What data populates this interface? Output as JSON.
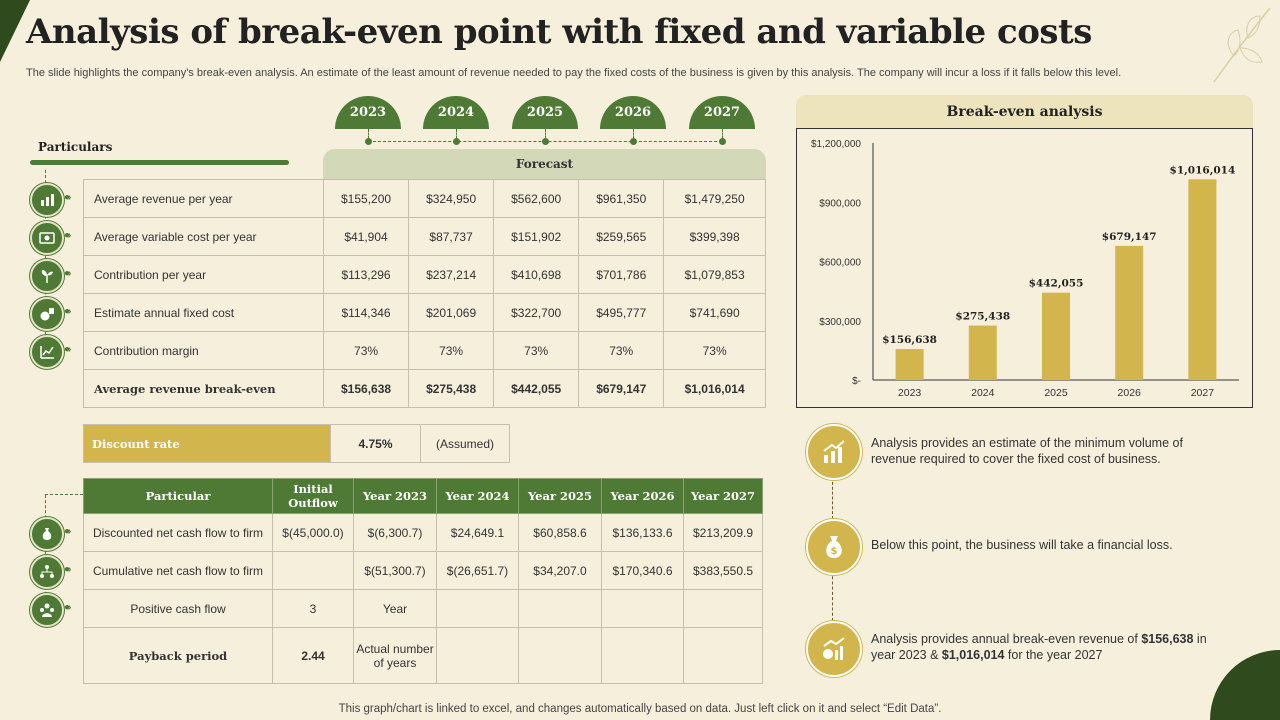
{
  "title": "Analysis of break-even point with fixed and variable costs",
  "subtitle": "The slide highlights the company's break-even analysis. An estimate of the least amount of revenue needed to pay the fixed costs of the business is given by this analysis. The company will incur a loss if it falls below this level.",
  "years": [
    "2023",
    "2024",
    "2025",
    "2026",
    "2027"
  ],
  "particulars_heading": "Particulars",
  "forecast_heading": "Forecast",
  "forecast_rows": [
    {
      "label": "Average revenue per year",
      "values": [
        "$155,200",
        "$324,950",
        "$562,600",
        "$961,350",
        "$1,479,250"
      ],
      "icon": "chart-icon"
    },
    {
      "label": "Average variable cost per year",
      "values": [
        "$41,904",
        "$87,737",
        "$151,902",
        "$259,565",
        "$399,398"
      ],
      "icon": "money-icon"
    },
    {
      "label": "Contribution per year",
      "values": [
        "$113,296",
        "$237,214",
        "$410,698",
        "$701,786",
        "$1,079,853"
      ],
      "icon": "plant-icon"
    },
    {
      "label": "Estimate annual fixed cost",
      "values": [
        "$114,346",
        "$201,069",
        "$322,700",
        "$495,777",
        "$741,690"
      ],
      "icon": "cost-icon"
    },
    {
      "label": "Contribution margin",
      "values": [
        "73%",
        "73%",
        "73%",
        "73%",
        "73%"
      ],
      "icon": "growth-icon"
    },
    {
      "label": "Average revenue break-even",
      "values": [
        "$156,638",
        "$275,438",
        "$442,055",
        "$679,147",
        "$1,016,014"
      ]
    }
  ],
  "discount": {
    "label": "Discount rate",
    "value": "4.75%",
    "note": "(Assumed)"
  },
  "cashflow_headers": [
    "Particular",
    "Initial Outflow",
    "Year 2023",
    "Year 2024",
    "Year 2025",
    "Year 2026",
    "Year 2027"
  ],
  "cashflow_rows": [
    {
      "cells": [
        "Discounted net cash flow to firm",
        "$(45,000.0)",
        "$(6,300.7)",
        "$24,649.1",
        "$60,858.6",
        "$136,133.6",
        "$213,209.9"
      ],
      "icon": "money-bag-icon"
    },
    {
      "cells": [
        "Cumulative net cash flow to firm",
        "",
        "$(51,300.7)",
        "$(26,651.7)",
        "$34,207.0",
        "$170,340.6",
        "$383,550.5"
      ],
      "icon": "network-icon"
    },
    {
      "cells": [
        "Positive cash flow",
        "3",
        "Year",
        "",
        "",
        "",
        ""
      ],
      "icon": "team-icon"
    },
    {
      "cells": [
        "Payback period",
        "2.44",
        "Actual number of years",
        "",
        "",
        "",
        ""
      ]
    }
  ],
  "chart_heading": "Break-even analysis",
  "chart_data": {
    "type": "bar",
    "title": "Break-even analysis",
    "categories": [
      "2023",
      "2024",
      "2025",
      "2026",
      "2027"
    ],
    "values": [
      156638,
      275438,
      442055,
      679147,
      1016014
    ],
    "data_labels": [
      "$156,638",
      "$275,438",
      "$442,055",
      "$679,147",
      "$1,016,014"
    ],
    "ylim": [
      0,
      1200000
    ],
    "yticks": [
      0,
      300000,
      600000,
      900000,
      1200000
    ],
    "ytick_labels": [
      "$-",
      "$300,000",
      "$600,000",
      "$900,000",
      "$1,200,000"
    ],
    "bar_color": "#d3b54e",
    "grid": false
  },
  "points": [
    {
      "text": "Analysis provides an estimate of the minimum volume of revenue required to cover the fixed cost of business.",
      "icon": "dollar-chart-icon"
    },
    {
      "text": "Below this point, the business will take a financial loss.",
      "icon": "money-bag-icon"
    },
    {
      "text_before": "Analysis provides annual break-even revenue of ",
      "bold1": "$156,638",
      "text_mid": " in year 2023 & ",
      "bold2": "$1,016,014",
      "text_after": " for the year 2027",
      "icon": "growth-chart-icon"
    }
  ],
  "footer": "This graph/chart is linked to excel, and changes automatically based on data. Just left click on it and select “Edit Data”.",
  "colors": {
    "green": "#4e7a35",
    "gold": "#d3b54e",
    "background": "#f5efdc",
    "dark_green": "#2f4a1d"
  }
}
